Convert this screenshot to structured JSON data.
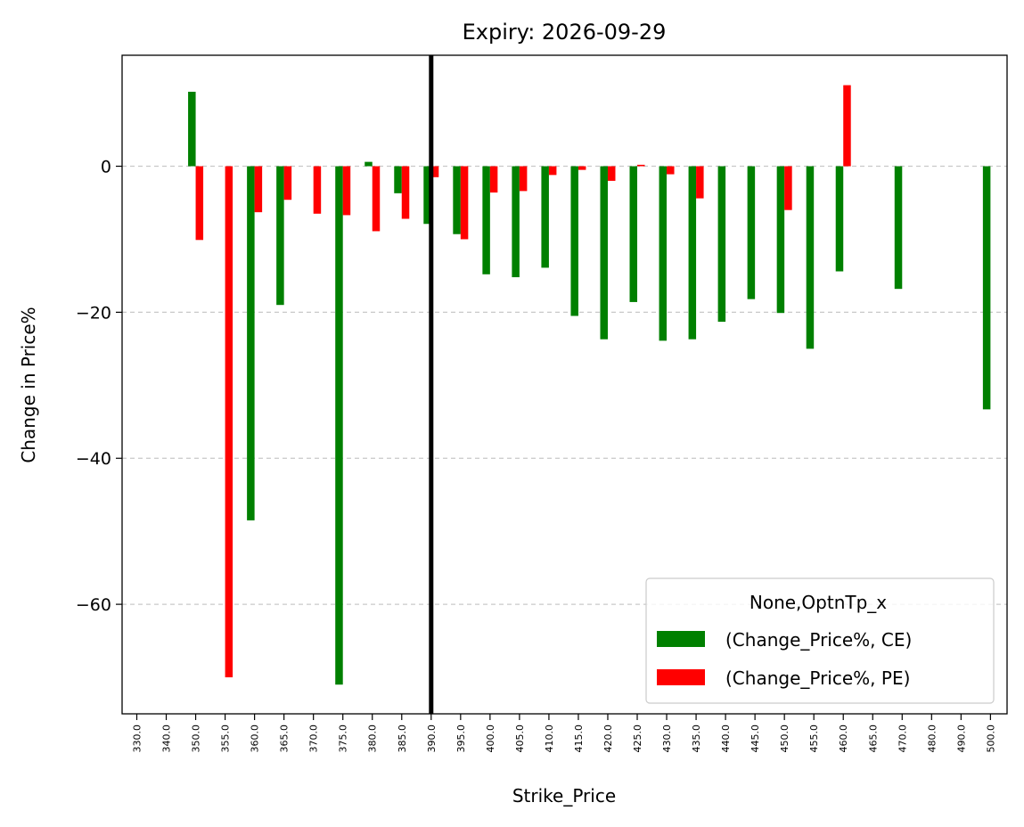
{
  "chart_data": {
    "type": "bar",
    "title": "Expiry: 2026-09-29",
    "xlabel": "Strike_Price",
    "ylabel": "Change in Price%",
    "categories": [
      "330.0",
      "340.0",
      "350.0",
      "355.0",
      "360.0",
      "365.0",
      "370.0",
      "375.0",
      "380.0",
      "385.0",
      "390.0",
      "395.0",
      "400.0",
      "405.0",
      "410.0",
      "415.0",
      "420.0",
      "425.0",
      "430.0",
      "435.0",
      "440.0",
      "445.0",
      "450.0",
      "455.0",
      "460.0",
      "465.0",
      "470.0",
      "480.0",
      "490.0",
      "500.0"
    ],
    "series": [
      {
        "name": "(Change_Price%, CE)",
        "color": "#008000",
        "values": [
          null,
          null,
          10.2,
          null,
          -48.5,
          -19.0,
          null,
          -71.0,
          0.6,
          -3.7,
          -7.9,
          -9.3,
          -14.8,
          -15.2,
          -13.9,
          -20.5,
          -23.7,
          -18.6,
          -23.9,
          -23.7,
          -21.3,
          -18.2,
          -20.1,
          -25.0,
          -14.4,
          null,
          -16.8,
          null,
          null,
          -33.3
        ]
      },
      {
        "name": "(Change_Price%, PE)",
        "color": "#ff0000",
        "values": [
          null,
          null,
          -10.1,
          -70.0,
          -6.3,
          -4.6,
          -6.5,
          -6.7,
          -8.9,
          -7.2,
          -1.5,
          -10.0,
          -3.6,
          -3.4,
          -1.2,
          -0.5,
          -2.0,
          0.2,
          -1.1,
          -4.4,
          null,
          null,
          -6.0,
          null,
          11.1,
          null,
          null,
          null,
          null,
          null
        ]
      }
    ],
    "ylim": [
      -75.0,
      15.2
    ],
    "yticks": [
      0,
      -20,
      -40,
      -60
    ],
    "grid": "horizontal dashed",
    "reference_line_category": "390.0",
    "legend": {
      "title": "None,OptnTp_x",
      "placement": "lower-right"
    }
  }
}
